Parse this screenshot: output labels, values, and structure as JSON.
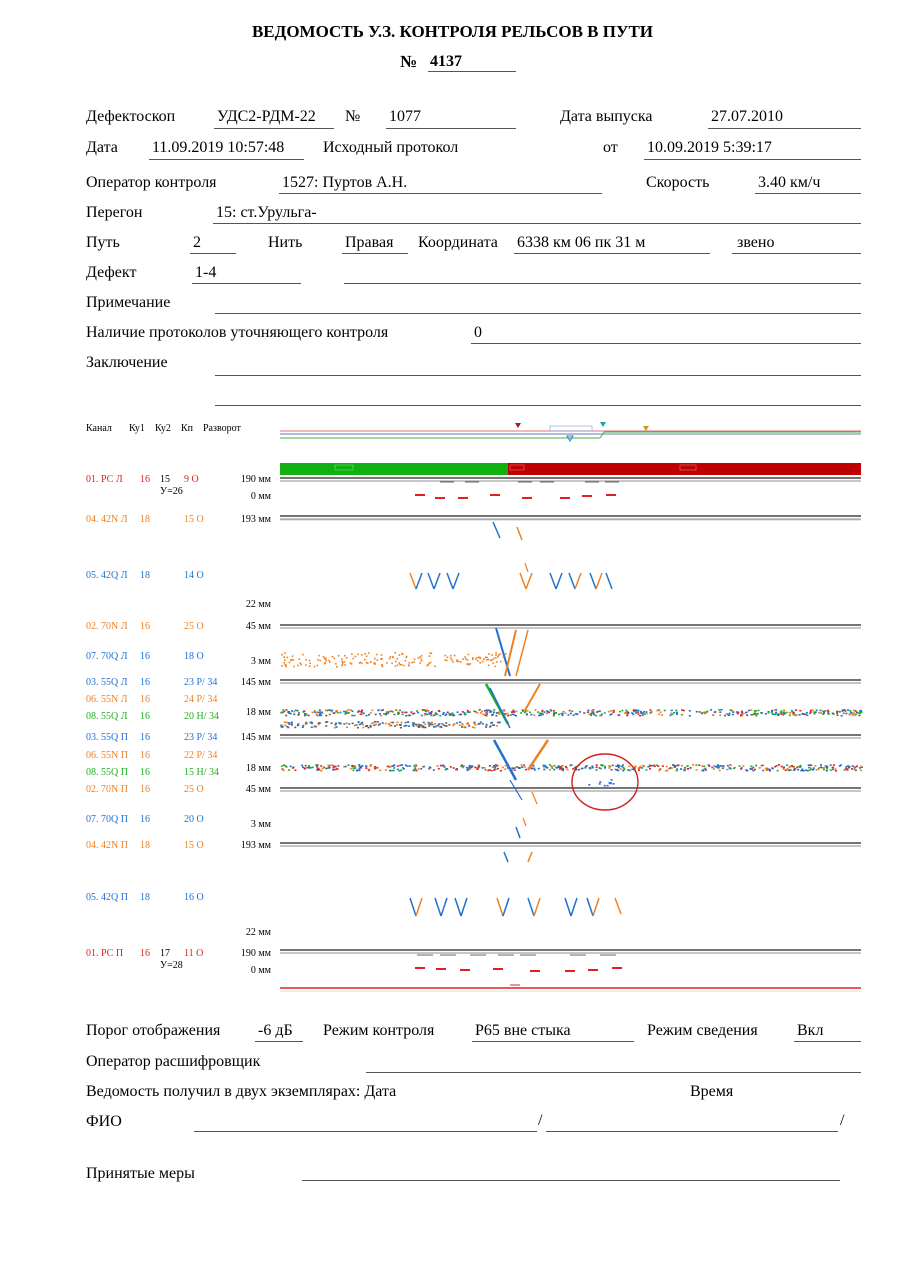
{
  "header": {
    "title": "ВЕДОМОСТЬ У.З. КОНТРОЛЯ РЕЛЬСОВ В ПУТИ",
    "number_label": "№",
    "number": "4137"
  },
  "form": {
    "defectoscope_label": "Дефектоскоп",
    "defectoscope": "УДС2-РДМ-22",
    "no_label": "№",
    "no": "1077",
    "release_label": "Дата выпуска",
    "release": "27.07.2010",
    "date_label": "Дата",
    "date": "11.09.2019 10:57:48",
    "source_label": "Исходный протокол",
    "from_label": "от",
    "from": "10.09.2019 5:39:17",
    "operator_label": "Оператор контроля",
    "operator": "1527: Пуртов А.Н.",
    "speed_label": "Скорость",
    "speed": "3.40 км/ч",
    "section_label": "Перегон",
    "section": "15: ст.Урульга-",
    "track_label": "Путь",
    "track": "2",
    "rail_label": "Нить",
    "rail": "Правая",
    "coord_label": "Координата",
    "coord": "6338 км 06 пк 31 м",
    "link_label": "звено",
    "defect_label": "Дефект",
    "defect": "1-4",
    "note_label": "Примечание",
    "protocols_label": "Наличие протоколов уточняющего контроля",
    "protocols": "0",
    "conclusion_label": "Заключение"
  },
  "scan_header": [
    "Канал",
    "Ку1",
    "Ку2",
    "Кп",
    "Разворот"
  ],
  "channels": [
    {
      "name": "01. РС Л",
      "ku1": "16",
      "ku2": "15",
      "kp": "9 О",
      "extra": "У=26",
      "color": "#e02020"
    },
    {
      "name": "04. 42N Л",
      "ku1": "18",
      "ku2": "",
      "kp": "15 О",
      "extra": "",
      "color": "#f08020"
    },
    {
      "name": "05. 42Q Л",
      "ku1": "18",
      "ku2": "",
      "kp": "14 О",
      "extra": "",
      "color": "#2070d0"
    },
    {
      "name": "02. 70N Л",
      "ku1": "16",
      "ku2": "",
      "kp": "25 О",
      "extra": "",
      "color": "#f08020"
    },
    {
      "name": "07. 70Q Л",
      "ku1": "16",
      "ku2": "",
      "kp": "18 О",
      "extra": "",
      "color": "#2070d0"
    },
    {
      "name": "03. 55Q Л",
      "ku1": "16",
      "ku2": "",
      "kp": "23 Р/ 34",
      "extra": "",
      "color": "#2070d0"
    },
    {
      "name": "06. 55N Л",
      "ku1": "16",
      "ku2": "",
      "kp": "24 Р/ 34",
      "extra": "",
      "color": "#f08020"
    },
    {
      "name": "08. 55Q Л",
      "ku1": "16",
      "ku2": "",
      "kp": "20 Н/ 34",
      "extra": "",
      "color": "#20b020"
    },
    {
      "name": "03. 55Q П",
      "ku1": "16",
      "ku2": "",
      "kp": "23 Р/ 34",
      "extra": "",
      "color": "#2070d0"
    },
    {
      "name": "06. 55N П",
      "ku1": "16",
      "ku2": "",
      "kp": "22 Р/ 34",
      "extra": "",
      "color": "#f08020"
    },
    {
      "name": "08. 55Q П",
      "ku1": "16",
      "ku2": "",
      "kp": "15 Н/ 34",
      "extra": "",
      "color": "#20b020"
    },
    {
      "name": "02. 70N П",
      "ku1": "16",
      "ku2": "",
      "kp": "25 О",
      "extra": "",
      "color": "#f08020"
    },
    {
      "name": "07. 70Q П",
      "ku1": "16",
      "ku2": "",
      "kp": "20 О",
      "extra": "",
      "color": "#2070d0"
    },
    {
      "name": "04. 42N П",
      "ku1": "18",
      "ku2": "",
      "kp": "15 О",
      "extra": "",
      "color": "#f08020"
    },
    {
      "name": "05. 42Q П",
      "ku1": "18",
      "ku2": "",
      "kp": "16 О",
      "extra": "",
      "color": "#2070d0"
    },
    {
      "name": "01. РС П",
      "ku1": "16",
      "ku2": "17",
      "kp": "11 О",
      "extra": "У=28",
      "color": "#e02020"
    }
  ],
  "depth_labels": [
    "190 мм",
    "0 мм",
    "193 мм",
    "22 мм",
    "45 мм",
    "3 мм",
    "145 мм",
    "18 мм",
    "145 мм",
    "18 мм",
    "45 мм",
    "3 мм",
    "193 мм",
    "22 мм",
    "190 мм",
    "0 мм"
  ],
  "footer": {
    "threshold_label": "Порог отображения",
    "threshold": "-6 дБ",
    "mode_label": "Режим контроля",
    "mode": "Р65 вне стыка",
    "merge_label": "Режим сведения",
    "merge": "Вкл",
    "decoder_label": "Оператор расшифровщик",
    "received_label": "Ведомость получил в двух экземплярах: Дата",
    "time_label": "Время",
    "fio_label": "ФИО",
    "slash": "/",
    "measures_label": "Принятые меры"
  }
}
